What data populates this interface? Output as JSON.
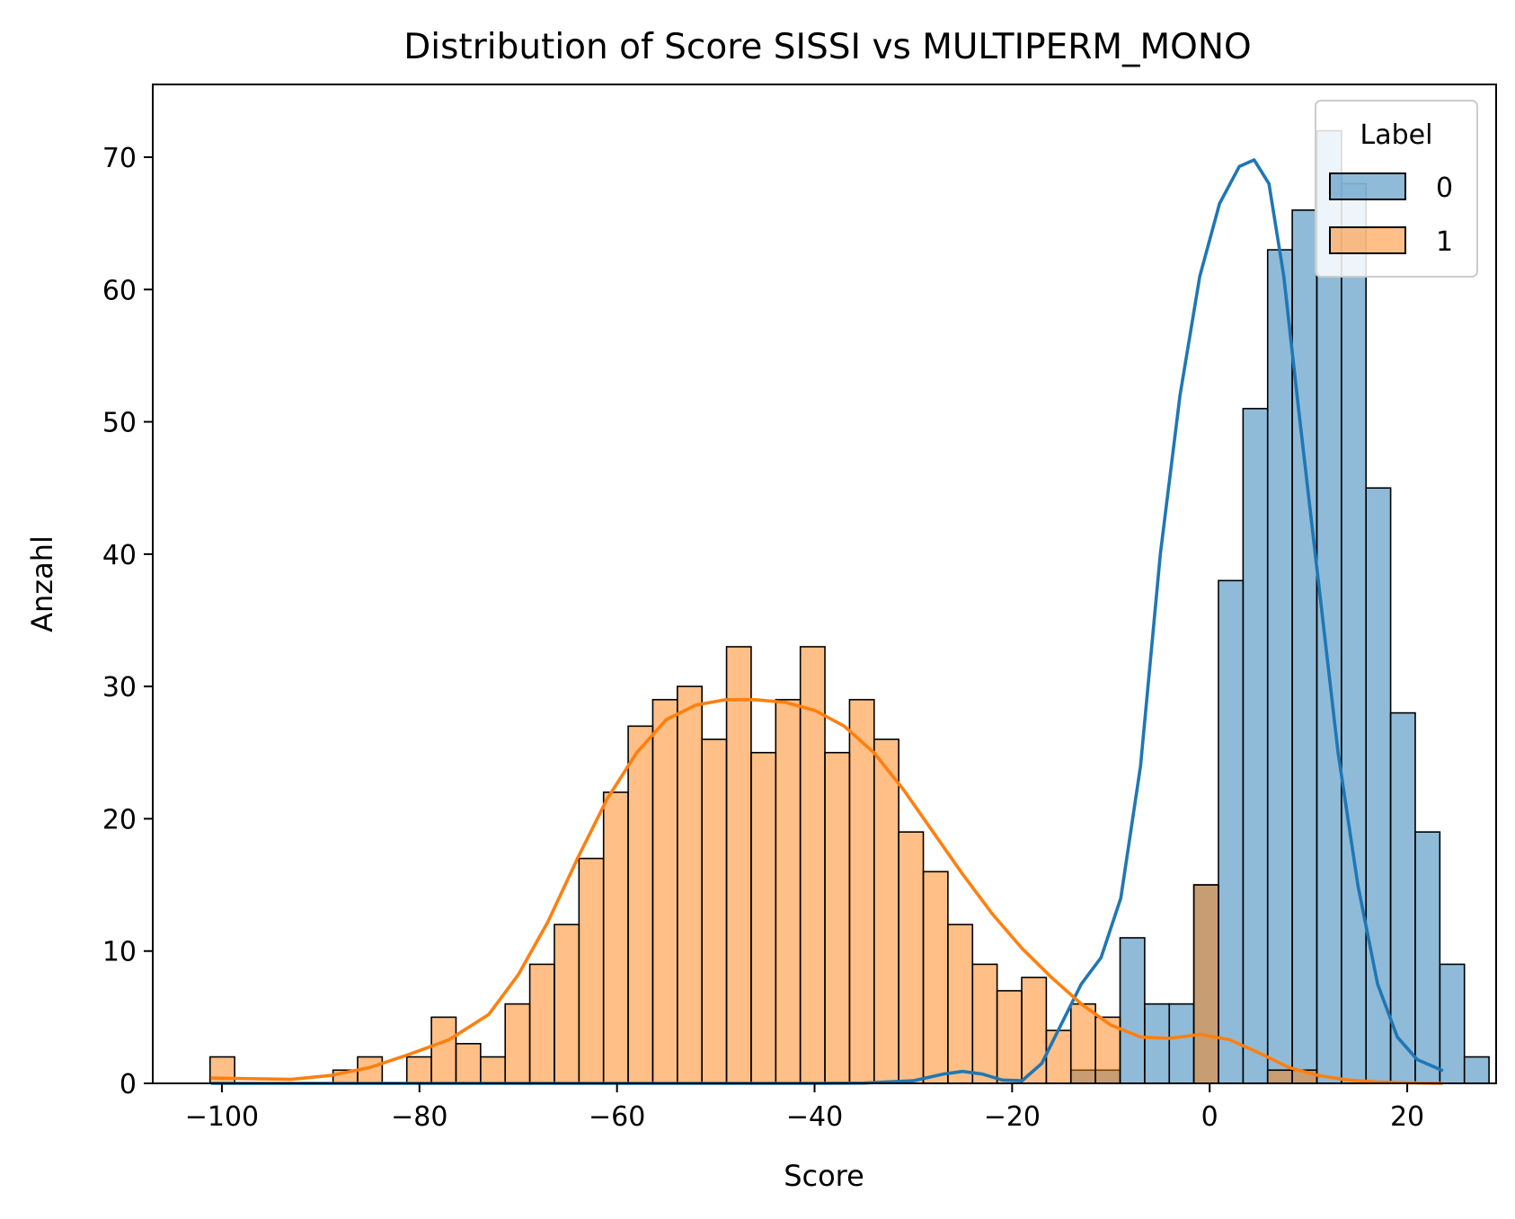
{
  "chart_data": {
    "type": "bar",
    "subtype": "histogram-with-kde",
    "title": "Distribution of Score SISSI vs MULTIPERM_MONO",
    "xlabel": "Score",
    "ylabel": "Anzahl",
    "xlim": [
      -107,
      29
    ],
    "ylim": [
      0,
      75.5
    ],
    "xticks": [
      -100,
      -80,
      -60,
      -40,
      -20,
      0,
      20
    ],
    "yticks": [
      0,
      10,
      20,
      30,
      40,
      50,
      60,
      70
    ],
    "grid": false,
    "bin_start": -101.2,
    "bin_width": 2.49,
    "legend": {
      "title": "Label",
      "placement": "top-right",
      "entries": [
        "0",
        "1"
      ]
    },
    "series": [
      {
        "name": "0",
        "fill_color": "#1f77b4",
        "line_color": "#1f77b4",
        "counts": [
          0,
          0,
          0,
          0,
          0,
          0,
          0,
          0,
          0,
          0,
          0,
          0,
          0,
          0,
          0,
          0,
          0,
          0,
          0,
          0,
          0,
          0,
          0,
          0,
          0,
          0,
          0,
          0,
          0,
          0,
          0,
          0,
          0,
          0,
          0,
          1,
          1,
          11,
          6,
          6,
          15,
          38,
          51,
          63,
          66,
          72,
          68,
          45,
          28,
          19,
          9,
          2
        ],
        "kde": [
          [
            -101,
            0
          ],
          [
            -40,
            0
          ],
          [
            -35,
            0.02
          ],
          [
            -30,
            0.2
          ],
          [
            -27,
            0.7
          ],
          [
            -25,
            0.9
          ],
          [
            -23,
            0.7
          ],
          [
            -21,
            0.25
          ],
          [
            -19,
            0.2
          ],
          [
            -17,
            1.5
          ],
          [
            -15,
            4.5
          ],
          [
            -13,
            7.5
          ],
          [
            -11,
            9.5
          ],
          [
            -9,
            14
          ],
          [
            -7,
            24
          ],
          [
            -5,
            40
          ],
          [
            -3,
            52
          ],
          [
            -1,
            61
          ],
          [
            1,
            66.5
          ],
          [
            3,
            69.3
          ],
          [
            4.5,
            69.8
          ],
          [
            6,
            68
          ],
          [
            7.5,
            61
          ],
          [
            9,
            51
          ],
          [
            11,
            38
          ],
          [
            13,
            25
          ],
          [
            15,
            15
          ],
          [
            17,
            7.5
          ],
          [
            19,
            3.5
          ],
          [
            21,
            1.8
          ],
          [
            23.5,
            1
          ]
        ]
      },
      {
        "name": "1",
        "fill_color": "#ff7f0e",
        "line_color": "#ff7f0e",
        "counts": [
          2,
          0,
          0,
          0,
          0,
          1,
          2,
          0,
          2,
          5,
          3,
          2,
          6,
          9,
          12,
          17,
          22,
          27,
          29,
          30,
          26,
          33,
          25,
          29,
          33,
          25,
          29,
          26,
          19,
          16,
          12,
          9,
          7,
          8,
          4,
          6,
          5,
          0,
          0,
          0,
          15,
          0,
          0,
          1,
          1,
          0,
          0,
          0,
          0,
          0,
          0,
          0
        ],
        "kde": [
          [
            -101,
            0.4
          ],
          [
            -97,
            0.35
          ],
          [
            -93,
            0.3
          ],
          [
            -89,
            0.6
          ],
          [
            -85,
            1.2
          ],
          [
            -81,
            2.2
          ],
          [
            -77,
            3.3
          ],
          [
            -73,
            5.2
          ],
          [
            -70,
            8.2
          ],
          [
            -67,
            12.2
          ],
          [
            -64,
            17
          ],
          [
            -61,
            21.5
          ],
          [
            -58,
            25
          ],
          [
            -55,
            27.5
          ],
          [
            -52,
            28.6
          ],
          [
            -49,
            29
          ],
          [
            -46,
            29
          ],
          [
            -43,
            28.8
          ],
          [
            -40,
            28.2
          ],
          [
            -37,
            27
          ],
          [
            -34,
            25
          ],
          [
            -31,
            22.2
          ],
          [
            -28,
            19
          ],
          [
            -25,
            15.8
          ],
          [
            -22,
            12.8
          ],
          [
            -19,
            10.2
          ],
          [
            -16,
            8
          ],
          [
            -13,
            6
          ],
          [
            -10,
            4.4
          ],
          [
            -7,
            3.5
          ],
          [
            -4,
            3.4
          ],
          [
            -1,
            3.7
          ],
          [
            2,
            3.3
          ],
          [
            5,
            2.3
          ],
          [
            8,
            1.2
          ],
          [
            11,
            0.6
          ],
          [
            14,
            0.25
          ],
          [
            17,
            0.1
          ],
          [
            20,
            0.05
          ],
          [
            23.5,
            0
          ]
        ]
      }
    ]
  }
}
